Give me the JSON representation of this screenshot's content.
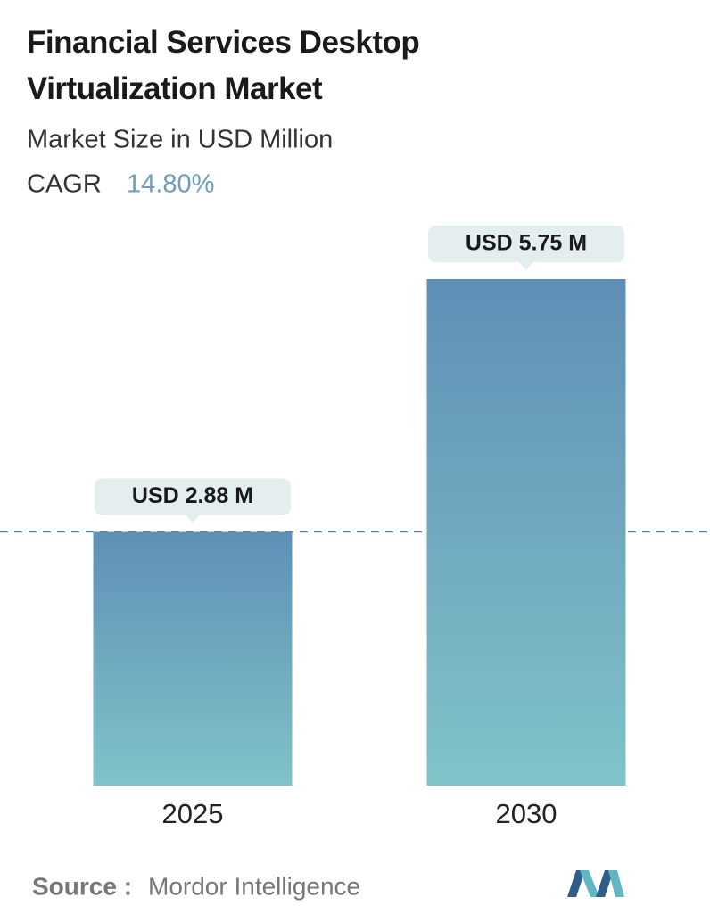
{
  "chart_data": {
    "type": "bar",
    "title": "Financial Services Desktop Virtualization Market",
    "subtitle": "Market Size in USD Million",
    "cagr_label": "CAGR",
    "cagr_value": "14.80%",
    "categories": [
      "2025",
      "2030"
    ],
    "values": [
      2.88,
      5.75
    ],
    "value_labels": [
      "USD 2.88 M",
      "USD 5.75 M"
    ],
    "color_top": "#5f8fb6",
    "color_bottom": "#80c3c8",
    "source_label": "Source :",
    "source": "Mordor Intelligence"
  }
}
